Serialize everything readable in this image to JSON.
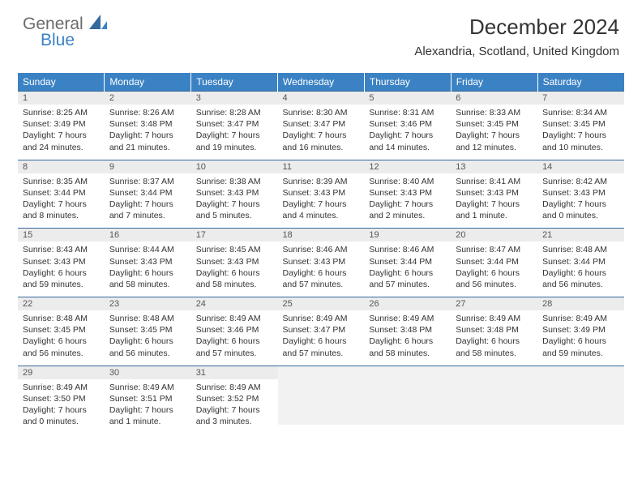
{
  "logo": {
    "part1": "General",
    "part2": "Blue"
  },
  "title": "December 2024",
  "location": "Alexandria, Scotland, United Kingdom",
  "colors": {
    "header_bg": "#3b82c4",
    "header_text": "#ffffff",
    "daynum_bg": "#ececec",
    "border": "#356a9c",
    "logo_gray": "#6b6b6b",
    "logo_blue": "#3b82c4"
  },
  "day_headers": [
    "Sunday",
    "Monday",
    "Tuesday",
    "Wednesday",
    "Thursday",
    "Friday",
    "Saturday"
  ],
  "weeks": [
    [
      {
        "n": "1",
        "sr": "Sunrise: 8:25 AM",
        "ss": "Sunset: 3:49 PM",
        "d1": "Daylight: 7 hours",
        "d2": "and 24 minutes."
      },
      {
        "n": "2",
        "sr": "Sunrise: 8:26 AM",
        "ss": "Sunset: 3:48 PM",
        "d1": "Daylight: 7 hours",
        "d2": "and 21 minutes."
      },
      {
        "n": "3",
        "sr": "Sunrise: 8:28 AM",
        "ss": "Sunset: 3:47 PM",
        "d1": "Daylight: 7 hours",
        "d2": "and 19 minutes."
      },
      {
        "n": "4",
        "sr": "Sunrise: 8:30 AM",
        "ss": "Sunset: 3:47 PM",
        "d1": "Daylight: 7 hours",
        "d2": "and 16 minutes."
      },
      {
        "n": "5",
        "sr": "Sunrise: 8:31 AM",
        "ss": "Sunset: 3:46 PM",
        "d1": "Daylight: 7 hours",
        "d2": "and 14 minutes."
      },
      {
        "n": "6",
        "sr": "Sunrise: 8:33 AM",
        "ss": "Sunset: 3:45 PM",
        "d1": "Daylight: 7 hours",
        "d2": "and 12 minutes."
      },
      {
        "n": "7",
        "sr": "Sunrise: 8:34 AM",
        "ss": "Sunset: 3:45 PM",
        "d1": "Daylight: 7 hours",
        "d2": "and 10 minutes."
      }
    ],
    [
      {
        "n": "8",
        "sr": "Sunrise: 8:35 AM",
        "ss": "Sunset: 3:44 PM",
        "d1": "Daylight: 7 hours",
        "d2": "and 8 minutes."
      },
      {
        "n": "9",
        "sr": "Sunrise: 8:37 AM",
        "ss": "Sunset: 3:44 PM",
        "d1": "Daylight: 7 hours",
        "d2": "and 7 minutes."
      },
      {
        "n": "10",
        "sr": "Sunrise: 8:38 AM",
        "ss": "Sunset: 3:43 PM",
        "d1": "Daylight: 7 hours",
        "d2": "and 5 minutes."
      },
      {
        "n": "11",
        "sr": "Sunrise: 8:39 AM",
        "ss": "Sunset: 3:43 PM",
        "d1": "Daylight: 7 hours",
        "d2": "and 4 minutes."
      },
      {
        "n": "12",
        "sr": "Sunrise: 8:40 AM",
        "ss": "Sunset: 3:43 PM",
        "d1": "Daylight: 7 hours",
        "d2": "and 2 minutes."
      },
      {
        "n": "13",
        "sr": "Sunrise: 8:41 AM",
        "ss": "Sunset: 3:43 PM",
        "d1": "Daylight: 7 hours",
        "d2": "and 1 minute."
      },
      {
        "n": "14",
        "sr": "Sunrise: 8:42 AM",
        "ss": "Sunset: 3:43 PM",
        "d1": "Daylight: 7 hours",
        "d2": "and 0 minutes."
      }
    ],
    [
      {
        "n": "15",
        "sr": "Sunrise: 8:43 AM",
        "ss": "Sunset: 3:43 PM",
        "d1": "Daylight: 6 hours",
        "d2": "and 59 minutes."
      },
      {
        "n": "16",
        "sr": "Sunrise: 8:44 AM",
        "ss": "Sunset: 3:43 PM",
        "d1": "Daylight: 6 hours",
        "d2": "and 58 minutes."
      },
      {
        "n": "17",
        "sr": "Sunrise: 8:45 AM",
        "ss": "Sunset: 3:43 PM",
        "d1": "Daylight: 6 hours",
        "d2": "and 58 minutes."
      },
      {
        "n": "18",
        "sr": "Sunrise: 8:46 AM",
        "ss": "Sunset: 3:43 PM",
        "d1": "Daylight: 6 hours",
        "d2": "and 57 minutes."
      },
      {
        "n": "19",
        "sr": "Sunrise: 8:46 AM",
        "ss": "Sunset: 3:44 PM",
        "d1": "Daylight: 6 hours",
        "d2": "and 57 minutes."
      },
      {
        "n": "20",
        "sr": "Sunrise: 8:47 AM",
        "ss": "Sunset: 3:44 PM",
        "d1": "Daylight: 6 hours",
        "d2": "and 56 minutes."
      },
      {
        "n": "21",
        "sr": "Sunrise: 8:48 AM",
        "ss": "Sunset: 3:44 PM",
        "d1": "Daylight: 6 hours",
        "d2": "and 56 minutes."
      }
    ],
    [
      {
        "n": "22",
        "sr": "Sunrise: 8:48 AM",
        "ss": "Sunset: 3:45 PM",
        "d1": "Daylight: 6 hours",
        "d2": "and 56 minutes."
      },
      {
        "n": "23",
        "sr": "Sunrise: 8:48 AM",
        "ss": "Sunset: 3:45 PM",
        "d1": "Daylight: 6 hours",
        "d2": "and 56 minutes."
      },
      {
        "n": "24",
        "sr": "Sunrise: 8:49 AM",
        "ss": "Sunset: 3:46 PM",
        "d1": "Daylight: 6 hours",
        "d2": "and 57 minutes."
      },
      {
        "n": "25",
        "sr": "Sunrise: 8:49 AM",
        "ss": "Sunset: 3:47 PM",
        "d1": "Daylight: 6 hours",
        "d2": "and 57 minutes."
      },
      {
        "n": "26",
        "sr": "Sunrise: 8:49 AM",
        "ss": "Sunset: 3:48 PM",
        "d1": "Daylight: 6 hours",
        "d2": "and 58 minutes."
      },
      {
        "n": "27",
        "sr": "Sunrise: 8:49 AM",
        "ss": "Sunset: 3:48 PM",
        "d1": "Daylight: 6 hours",
        "d2": "and 58 minutes."
      },
      {
        "n": "28",
        "sr": "Sunrise: 8:49 AM",
        "ss": "Sunset: 3:49 PM",
        "d1": "Daylight: 6 hours",
        "d2": "and 59 minutes."
      }
    ],
    [
      {
        "n": "29",
        "sr": "Sunrise: 8:49 AM",
        "ss": "Sunset: 3:50 PM",
        "d1": "Daylight: 7 hours",
        "d2": "and 0 minutes."
      },
      {
        "n": "30",
        "sr": "Sunrise: 8:49 AM",
        "ss": "Sunset: 3:51 PM",
        "d1": "Daylight: 7 hours",
        "d2": "and 1 minute."
      },
      {
        "n": "31",
        "sr": "Sunrise: 8:49 AM",
        "ss": "Sunset: 3:52 PM",
        "d1": "Daylight: 7 hours",
        "d2": "and 3 minutes."
      },
      {
        "empty": true
      },
      {
        "empty": true
      },
      {
        "empty": true
      },
      {
        "empty": true
      }
    ]
  ]
}
